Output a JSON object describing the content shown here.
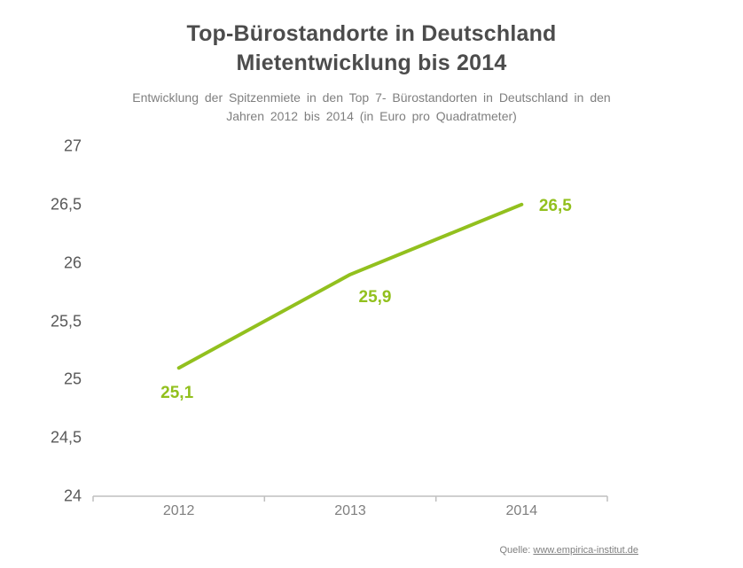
{
  "header": {
    "title_line1": "Top-Bürostandorte in Deutschland",
    "title_line2": "Mietentwicklung bis 2014",
    "subtitle_line1": "Entwicklung der Spitzenmiete in den Top 7- Bürostandorten in Deutschland in den",
    "subtitle_line2": "Jahren 2012 bis 2014 (in Euro pro Quadratmeter)"
  },
  "chart_data": {
    "type": "line",
    "title": "Top-Bürostandorte in Deutschland Mietentwicklung bis 2014",
    "subtitle": "Entwicklung der Spitzenmiete in den Top 7- Bürostandorten in Deutschland in den Jahren 2012 bis 2014 (in Euro pro Quadratmeter)",
    "categories": [
      "2012",
      "2013",
      "2014"
    ],
    "values": [
      25.1,
      25.9,
      26.5
    ],
    "value_labels": [
      "25,1",
      "25,9",
      "26,5"
    ],
    "ylim": [
      24,
      27
    ],
    "ytick_step": 0.5,
    "ytick_labels": [
      "27",
      "26,5",
      "26",
      "25,5",
      "25",
      "24,5",
      "24"
    ],
    "xlabel": "",
    "ylabel": "",
    "grid": false,
    "legend": "none",
    "line_color": "#92c01e",
    "label_color": "#92c01e",
    "axis_color": "#bfbfbf"
  },
  "footer": {
    "source_label": "Quelle:",
    "source_url": "www.empirica-institut.de"
  }
}
